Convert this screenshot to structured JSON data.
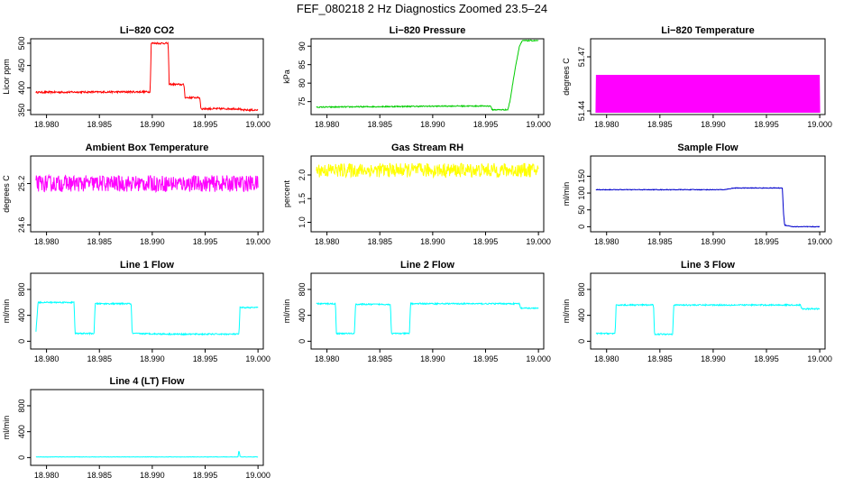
{
  "figure": {
    "title": "FEF_080218  2 Hz Diagnostics Zoomed 23.5–24"
  },
  "chart_data": [
    {
      "type": "line",
      "title": "Li−820 CO2",
      "xlabel": "",
      "ylabel": "Licor ppm",
      "xlim": [
        18.9785,
        19.0005
      ],
      "ylim": [
        340,
        510
      ],
      "xticks": [
        "18.980",
        "18.985",
        "18.990",
        "18.995",
        "19.000"
      ],
      "yticks": [
        "350",
        "400",
        "450",
        "500"
      ],
      "color": "#ff0000",
      "series": [
        {
          "x": [
            18.979,
            18.9898,
            18.9899,
            18.9915,
            18.9916,
            18.993,
            18.9931,
            18.9945,
            18.9946,
            18.9983,
            18.9984,
            19.0
          ],
          "y": [
            390,
            391,
            500,
            500,
            408,
            407,
            378,
            378,
            353,
            353,
            350,
            350
          ],
          "noise": 2
        }
      ]
    },
    {
      "type": "line",
      "title": "Li−820 Pressure",
      "xlabel": "",
      "ylabel": "kPa",
      "xlim": [
        18.9785,
        19.0005
      ],
      "ylim": [
        71.5,
        92
      ],
      "xticks": [
        "18.980",
        "18.985",
        "18.990",
        "18.995",
        "19.000"
      ],
      "yticks": [
        "75",
        "80",
        "85",
        "90"
      ],
      "color": "#00cc00",
      "series": [
        {
          "x": [
            18.979,
            18.992,
            18.9955,
            18.9956,
            18.9971,
            18.9973,
            18.9978,
            18.9982,
            18.9985,
            19.0
          ],
          "y": [
            73.5,
            73.8,
            73.8,
            72.8,
            72.8,
            75,
            84,
            90,
            91.5,
            91.5
          ],
          "noise": 0.15
        }
      ]
    },
    {
      "type": "line",
      "title": "Li−820 Temperature",
      "xlabel": "",
      "ylabel": "degrees C",
      "xlim": [
        18.9785,
        19.0005
      ],
      "ylim": [
        51.438,
        51.48
      ],
      "xticks": [
        "18.980",
        "18.985",
        "18.990",
        "18.995",
        "19.000"
      ],
      "yticks": [
        "51.44",
        "51.47"
      ],
      "color": "#ff00ff",
      "series": [
        {
          "x": [
            18.979,
            19.0
          ],
          "y": [
            51.439,
            51.46
          ],
          "band": true,
          "noise": 0
        }
      ]
    },
    {
      "type": "line",
      "title": "Ambient Box Temperature",
      "xlabel": "",
      "ylabel": "degrees C",
      "xlim": [
        18.9785,
        19.0005
      ],
      "ylim": [
        24.5,
        25.6
      ],
      "xticks": [
        "18.980",
        "18.985",
        "18.990",
        "18.995",
        "19.000"
      ],
      "yticks": [
        "24.6",
        "25.2"
      ],
      "color": "#ff00ff",
      "series": [
        {
          "x": [
            18.979,
            19.0
          ],
          "y": [
            25.2,
            25.2
          ],
          "noise": 0.12
        }
      ]
    },
    {
      "type": "line",
      "title": "Gas Stream RH",
      "xlabel": "",
      "ylabel": "percent",
      "xlim": [
        18.9785,
        19.0005
      ],
      "ylim": [
        0.8,
        2.4
      ],
      "xticks": [
        "18.980",
        "18.985",
        "18.990",
        "18.995",
        "19.000"
      ],
      "yticks": [
        "1.0",
        "1.5",
        "2.0"
      ],
      "color": "#ffff00",
      "series": [
        {
          "x": [
            18.979,
            19.0
          ],
          "y": [
            2.1,
            2.1
          ],
          "noise": 0.15
        }
      ]
    },
    {
      "type": "line",
      "title": "Sample Flow",
      "xlabel": "",
      "ylabel": "ml/min",
      "xlim": [
        18.9785,
        19.0005
      ],
      "ylim": [
        -15,
        210
      ],
      "xticks": [
        "18.980",
        "18.985",
        "18.990",
        "18.995",
        "19.000"
      ],
      "yticks": [
        "0",
        "50",
        "100",
        "150"
      ],
      "color": "#0000cc",
      "series": [
        {
          "x": [
            18.979,
            18.991,
            18.992,
            18.9965,
            18.9966,
            18.9967,
            18.9975,
            19.0
          ],
          "y": [
            110,
            110,
            115,
            115,
            40,
            5,
            0,
            0
          ],
          "noise": 1
        }
      ]
    },
    {
      "type": "line",
      "title": "Line 1 Flow",
      "xlabel": "",
      "ylabel": "ml/min",
      "xlim": [
        18.9785,
        19.0005
      ],
      "ylim": [
        -120,
        1050
      ],
      "xticks": [
        "18.980",
        "18.985",
        "18.990",
        "18.995",
        "19.000"
      ],
      "yticks": [
        "0",
        "400",
        "800"
      ],
      "color": "#00ffff",
      "series": [
        {
          "x": [
            18.979,
            18.9792,
            18.9826,
            18.9827,
            18.9845,
            18.9846,
            18.988,
            18.9881,
            18.992,
            18.9982,
            18.9983,
            19.0
          ],
          "y": [
            150,
            600,
            600,
            120,
            120,
            580,
            580,
            120,
            110,
            110,
            520,
            520
          ],
          "noise": 10
        }
      ]
    },
    {
      "type": "line",
      "title": "Line 2 Flow",
      "xlabel": "",
      "ylabel": "ml/min",
      "xlim": [
        18.9785,
        19.0005
      ],
      "ylim": [
        -120,
        1050
      ],
      "xticks": [
        "18.980",
        "18.985",
        "18.990",
        "18.995",
        "19.000"
      ],
      "yticks": [
        "0",
        "400",
        "800"
      ],
      "color": "#00ffff",
      "series": [
        {
          "x": [
            18.979,
            18.9808,
            18.9809,
            18.9826,
            18.9827,
            18.986,
            18.9861,
            18.9878,
            18.9879,
            18.9982,
            18.9983,
            19.0
          ],
          "y": [
            580,
            580,
            120,
            120,
            570,
            570,
            120,
            120,
            580,
            580,
            510,
            510
          ],
          "noise": 10
        }
      ]
    },
    {
      "type": "line",
      "title": "Line 3 Flow",
      "xlabel": "",
      "ylabel": "ml/min",
      "xlim": [
        18.9785,
        19.0005
      ],
      "ylim": [
        -120,
        1050
      ],
      "xticks": [
        "18.980",
        "18.985",
        "18.990",
        "18.995",
        "19.000"
      ],
      "yticks": [
        "0",
        "400",
        "800"
      ],
      "color": "#00ffff",
      "series": [
        {
          "x": [
            18.979,
            18.9792,
            18.9808,
            18.9809,
            18.9844,
            18.9845,
            18.9862,
            18.9863,
            18.9982,
            18.9983,
            19.0
          ],
          "y": [
            120,
            120,
            120,
            560,
            560,
            110,
            110,
            560,
            560,
            500,
            500
          ],
          "noise": 10
        }
      ]
    },
    {
      "type": "line",
      "title": "Line 4 (LT) Flow",
      "xlabel": "",
      "ylabel": "ml/min",
      "xlim": [
        18.9785,
        19.0005
      ],
      "ylim": [
        -120,
        1050
      ],
      "xticks": [
        "18.980",
        "18.985",
        "18.990",
        "18.995",
        "19.000"
      ],
      "yticks": [
        "0",
        "400",
        "800"
      ],
      "color": "#00ffff",
      "series": [
        {
          "x": [
            18.979,
            18.9981,
            18.9982,
            18.9983,
            18.9984,
            19.0
          ],
          "y": [
            10,
            10,
            110,
            20,
            10,
            10
          ],
          "noise": 3
        }
      ]
    }
  ]
}
